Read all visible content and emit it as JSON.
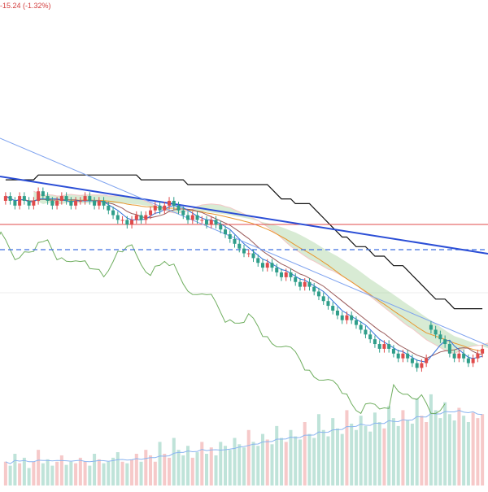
{
  "header": {
    "change_text": "-15.24 (-1.32%)"
  },
  "colors": {
    "up": "#e04b4b",
    "down": "#2f9e8a",
    "up_volume": "#f6c9c9",
    "down_volume": "#bfe3d9",
    "ma_short": "#2f6fdc",
    "ma_mid": "#9a5a5a",
    "ma_long": "#e8962e",
    "senkou_cloud_bull": "#a9d3a0",
    "senkou_cloud_bear": "#f4c6c6",
    "lagging_span": "#6fae5f",
    "donchian": "#111111",
    "trendline_main": "#2b4ed6",
    "trendline_thin": "#7fa3ef",
    "horizontal_red": "#e04b4b",
    "horizontal_blue_dashed": "#3d6fe0",
    "volume_ma": "#8ab4f0"
  },
  "chart_data": {
    "type": "candlestick",
    "title": "",
    "candles_open": [
      100,
      101,
      100,
      99,
      101,
      100,
      99,
      100,
      102,
      101,
      100,
      99,
      100,
      101,
      100,
      99,
      100,
      100,
      101,
      100,
      99,
      100,
      99,
      98,
      97,
      96,
      96,
      95,
      96,
      97,
      96,
      97,
      98,
      99,
      98,
      99,
      100,
      99,
      98,
      97,
      96,
      97,
      96,
      96,
      95,
      96,
      95,
      94,
      93,
      92,
      91,
      90,
      89,
      89,
      88,
      87,
      86,
      87,
      86,
      85,
      84,
      85,
      84,
      83,
      82,
      83,
      82,
      81,
      80,
      79,
      78,
      77,
      76,
      75,
      76,
      75,
      74,
      73,
      72,
      71,
      70,
      69,
      70,
      69,
      68,
      67,
      68,
      67,
      66,
      65,
      66,
      74,
      73,
      72,
      71,
      70,
      68,
      67,
      68,
      67,
      66,
      67,
      68
    ],
    "candles_close": [
      101,
      100,
      99,
      101,
      100,
      99,
      100,
      102,
      101,
      100,
      99,
      100,
      101,
      100,
      99,
      100,
      100,
      101,
      100,
      99,
      100,
      99,
      98,
      97,
      96,
      96,
      95,
      96,
      97,
      96,
      97,
      98,
      99,
      98,
      99,
      100,
      99,
      98,
      97,
      96,
      97,
      96,
      96,
      95,
      96,
      95,
      94,
      93,
      92,
      91,
      90,
      89,
      89,
      88,
      87,
      86,
      87,
      86,
      85,
      84,
      85,
      84,
      83,
      82,
      83,
      82,
      81,
      80,
      79,
      78,
      77,
      76,
      75,
      76,
      75,
      74,
      73,
      72,
      71,
      70,
      69,
      70,
      69,
      68,
      67,
      68,
      67,
      66,
      65,
      66,
      67,
      73,
      72,
      71,
      70,
      68,
      67,
      68,
      67,
      66,
      67,
      68,
      69
    ],
    "volume": [
      30,
      25,
      40,
      28,
      35,
      22,
      30,
      45,
      28,
      33,
      25,
      30,
      38,
      26,
      30,
      28,
      35,
      30,
      25,
      40,
      33,
      28,
      30,
      35,
      42,
      30,
      28,
      33,
      40,
      30,
      45,
      38,
      30,
      55,
      40,
      35,
      60,
      45,
      38,
      50,
      35,
      42,
      55,
      40,
      48,
      38,
      55,
      50,
      45,
      60,
      52,
      48,
      70,
      55,
      50,
      65,
      58,
      52,
      75,
      60,
      55,
      70,
      62,
      58,
      80,
      65,
      60,
      90,
      70,
      62,
      85,
      72,
      65,
      95,
      78,
      70,
      88,
      75,
      68,
      92,
      80,
      72,
      100,
      85,
      75,
      95,
      82,
      78,
      110,
      88,
      80,
      115,
      95,
      85,
      105,
      90,
      82,
      98,
      88,
      80,
      92,
      85,
      90
    ],
    "price_range": [
      62,
      108
    ],
    "volume_range": [
      0,
      120
    ],
    "grid": true,
    "legend": "none"
  }
}
